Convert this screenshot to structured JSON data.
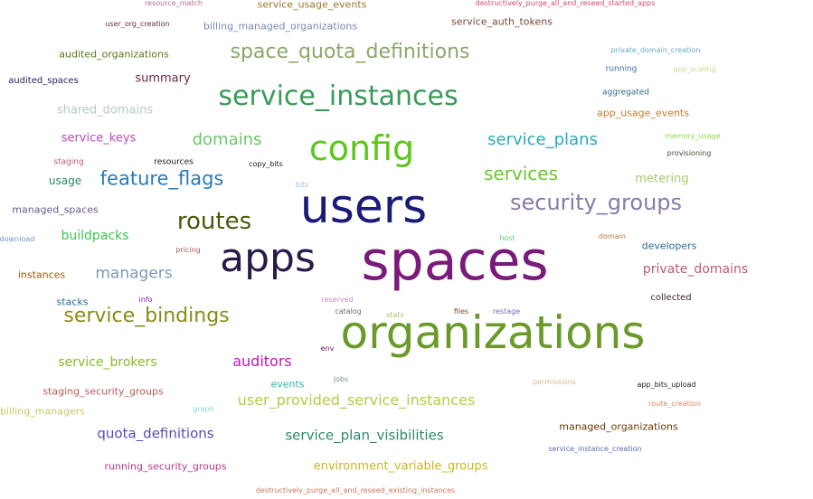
{
  "word_cloud": {
    "words": [
      {
        "text": "resource_match",
        "color": "#b56a9a"
      },
      {
        "text": "service_usage_events",
        "color": "#9a7a2a"
      },
      {
        "text": "destructively_purge_all_and_reseed_started_apps",
        "color": "#d04b6b"
      },
      {
        "text": "user_org_creation",
        "color": "#6a2a3a"
      },
      {
        "text": "billing_managed_organizations",
        "color": "#7a8ab8"
      },
      {
        "text": "service_auth_tokens",
        "color": "#7a4a3a"
      },
      {
        "text": "audited_organizations",
        "color": "#5a7a1a"
      },
      {
        "text": "space_quota_definitions",
        "color": "#8aa86a"
      },
      {
        "text": "private_domain_creation",
        "color": "#6aa8c8"
      },
      {
        "text": "running",
        "color": "#3a6aa8"
      },
      {
        "text": "app_scaling",
        "color": "#c8d88a"
      },
      {
        "text": "audited_spaces",
        "color": "#2a1a5a"
      },
      {
        "text": "summary",
        "color": "#6a2a4a"
      },
      {
        "text": "service_instances",
        "color": "#3a9a5a"
      },
      {
        "text": "aggregated",
        "color": "#2a6a8a"
      },
      {
        "text": "shared_domains",
        "color": "#b8c8c8"
      },
      {
        "text": "app_usage_events",
        "color": "#c8782a"
      },
      {
        "text": "service_keys",
        "color": "#b84ab8"
      },
      {
        "text": "domains",
        "color": "#6ac86a"
      },
      {
        "text": "config",
        "color": "#5ac81a"
      },
      {
        "text": "service_plans",
        "color": "#2aa8b8"
      },
      {
        "text": "memory_usage",
        "color": "#8ad84a"
      },
      {
        "text": "staging",
        "color": "#b85a6a"
      },
      {
        "text": "resources",
        "color": "#1a1a1a"
      },
      {
        "text": "copy_bits",
        "color": "#1a1a1a"
      },
      {
        "text": "provisioning",
        "color": "#4a4a3a"
      },
      {
        "text": "usage",
        "color": "#2a8a6a"
      },
      {
        "text": "feature_flags",
        "color": "#2a7ab8"
      },
      {
        "text": "services",
        "color": "#6ac82a"
      },
      {
        "text": "metering",
        "color": "#a8c86a"
      },
      {
        "text": "bits",
        "color": "#a8b8d8"
      },
      {
        "text": "users",
        "color": "#1a1a7a"
      },
      {
        "text": "security_groups",
        "color": "#8a7aa8"
      },
      {
        "text": "managed_spaces",
        "color": "#6a5a8a"
      },
      {
        "text": "routes",
        "color": "#4a5a0a"
      },
      {
        "text": "download",
        "color": "#6a9ac8"
      },
      {
        "text": "buildpacks",
        "color": "#3ac84a"
      },
      {
        "text": "host",
        "color": "#5ac86a"
      },
      {
        "text": "domain",
        "color": "#b8784a"
      },
      {
        "text": "developers",
        "color": "#2a6a9a"
      },
      {
        "text": "apps",
        "color": "#2a1a4a"
      },
      {
        "text": "spaces",
        "color": "#7a1a7a"
      },
      {
        "text": "pricing",
        "color": "#a85a5a"
      },
      {
        "text": "instances",
        "color": "#9a5a0a"
      },
      {
        "text": "managers",
        "color": "#7a9ab8"
      },
      {
        "text": "private_domains",
        "color": "#b85a7a"
      },
      {
        "text": "reserved",
        "color": "#c88ac8"
      },
      {
        "text": "collected",
        "color": "#3a2a2a"
      },
      {
        "text": "stacks",
        "color": "#2a6a8a"
      },
      {
        "text": "info",
        "color": "#8a1ab8"
      },
      {
        "text": "catalog",
        "color": "#6a6a6a"
      },
      {
        "text": "files",
        "color": "#7a4a2a"
      },
      {
        "text": "restage",
        "color": "#7a6ab8"
      },
      {
        "text": "service_bindings",
        "color": "#8a8a1a"
      },
      {
        "text": "stats",
        "color": "#b8b86a"
      },
      {
        "text": "organizations",
        "color": "#6a9a2a"
      },
      {
        "text": "env",
        "color": "#6a1a6a"
      },
      {
        "text": "service_brokers",
        "color": "#8ab82a"
      },
      {
        "text": "auditors",
        "color": "#b81ab8"
      },
      {
        "text": "events",
        "color": "#2ab8a8"
      },
      {
        "text": "jobs",
        "color": "#7a8a9a"
      },
      {
        "text": "permissions",
        "color": "#d8b88a"
      },
      {
        "text": "app_bits_upload",
        "color": "#1a1a1a"
      },
      {
        "text": "staging_security_groups",
        "color": "#b85a5a"
      },
      {
        "text": "user_provided_service_instances",
        "color": "#b8c84a"
      },
      {
        "text": "billing_managers",
        "color": "#c8c86a"
      },
      {
        "text": "graph",
        "color": "#8ad8c8"
      },
      {
        "text": "route_creation",
        "color": "#d88a6a"
      },
      {
        "text": "managed_organizations",
        "color": "#6a3a0a"
      },
      {
        "text": "quota_definitions",
        "color": "#5a4ab8"
      },
      {
        "text": "service_plan_visibilities",
        "color": "#2a8a6a"
      },
      {
        "text": "service_instance_creation",
        "color": "#5a6ab8"
      },
      {
        "text": "running_security_groups",
        "color": "#b83a8a"
      },
      {
        "text": "environment_variable_groups",
        "color": "#c8b81a"
      },
      {
        "text": "destructively_purge_all_and_reseed_existing_instances",
        "color": "#c8785a"
      }
    ]
  }
}
